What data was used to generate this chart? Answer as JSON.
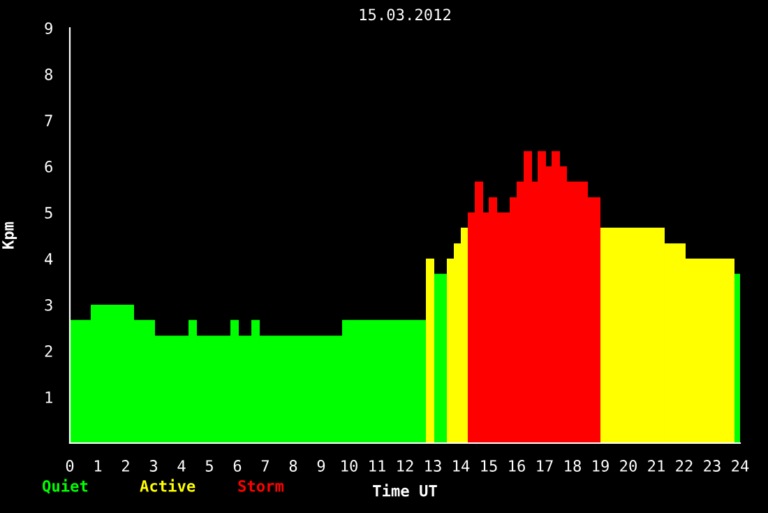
{
  "chart_data": {
    "type": "histogram",
    "title": "15.03.2012",
    "xlabel": "Time UT",
    "ylabel": "Kpm",
    "bins": [
      0,
      0.75,
      2.3,
      3.05,
      4.25,
      4.55,
      5.75,
      6.05,
      6.5,
      6.8,
      9.75,
      12.75,
      13.05,
      13.5,
      13.75,
      14.0,
      14.25,
      14.5,
      14.8,
      15.0,
      15.3,
      15.75,
      16.0,
      16.25,
      16.55,
      16.75,
      17.05,
      17.25,
      17.55,
      17.8,
      18.55,
      19.0,
      21.3,
      22.05,
      23.8,
      24.0
    ],
    "series": [
      {
        "name": "Quiet",
        "color": "#00ff00",
        "values": [
          2.67,
          3.0,
          2.67,
          2.33,
          2.67,
          2.33,
          2.67,
          2.33,
          2.67,
          2.33,
          2.67,
          null,
          3.67,
          null,
          null,
          null,
          null,
          null,
          null,
          null,
          null,
          null,
          null,
          null,
          null,
          null,
          null,
          null,
          null,
          null,
          null,
          null,
          null,
          null,
          3.67
        ]
      },
      {
        "name": "Active",
        "color": "#ffff00",
        "values": [
          null,
          null,
          null,
          null,
          null,
          null,
          null,
          null,
          null,
          null,
          null,
          4.0,
          null,
          4.0,
          4.33,
          4.67,
          null,
          null,
          null,
          null,
          null,
          null,
          null,
          null,
          null,
          null,
          null,
          null,
          null,
          null,
          null,
          4.67,
          4.33,
          4.0,
          null
        ]
      },
      {
        "name": "Storm",
        "color": "#ff0000",
        "values": [
          null,
          null,
          null,
          null,
          null,
          null,
          null,
          null,
          null,
          null,
          null,
          null,
          null,
          null,
          null,
          null,
          5.0,
          5.67,
          5.0,
          5.33,
          5.0,
          5.33,
          5.67,
          6.33,
          5.67,
          6.33,
          6.0,
          6.33,
          6.0,
          5.67,
          5.33,
          null,
          null,
          null,
          null
        ]
      }
    ],
    "xlim": [
      0,
      24
    ],
    "xticks": [
      0,
      1,
      2,
      3,
      4,
      5,
      6,
      7,
      8,
      9,
      10,
      11,
      12,
      13,
      14,
      15,
      16,
      17,
      18,
      19,
      20,
      21,
      22,
      23,
      24
    ],
    "ylim": [
      0,
      9
    ],
    "yticks": [
      1,
      2,
      3,
      4,
      5,
      6,
      7,
      8,
      9
    ],
    "legend": "bottom left",
    "grid": false
  }
}
